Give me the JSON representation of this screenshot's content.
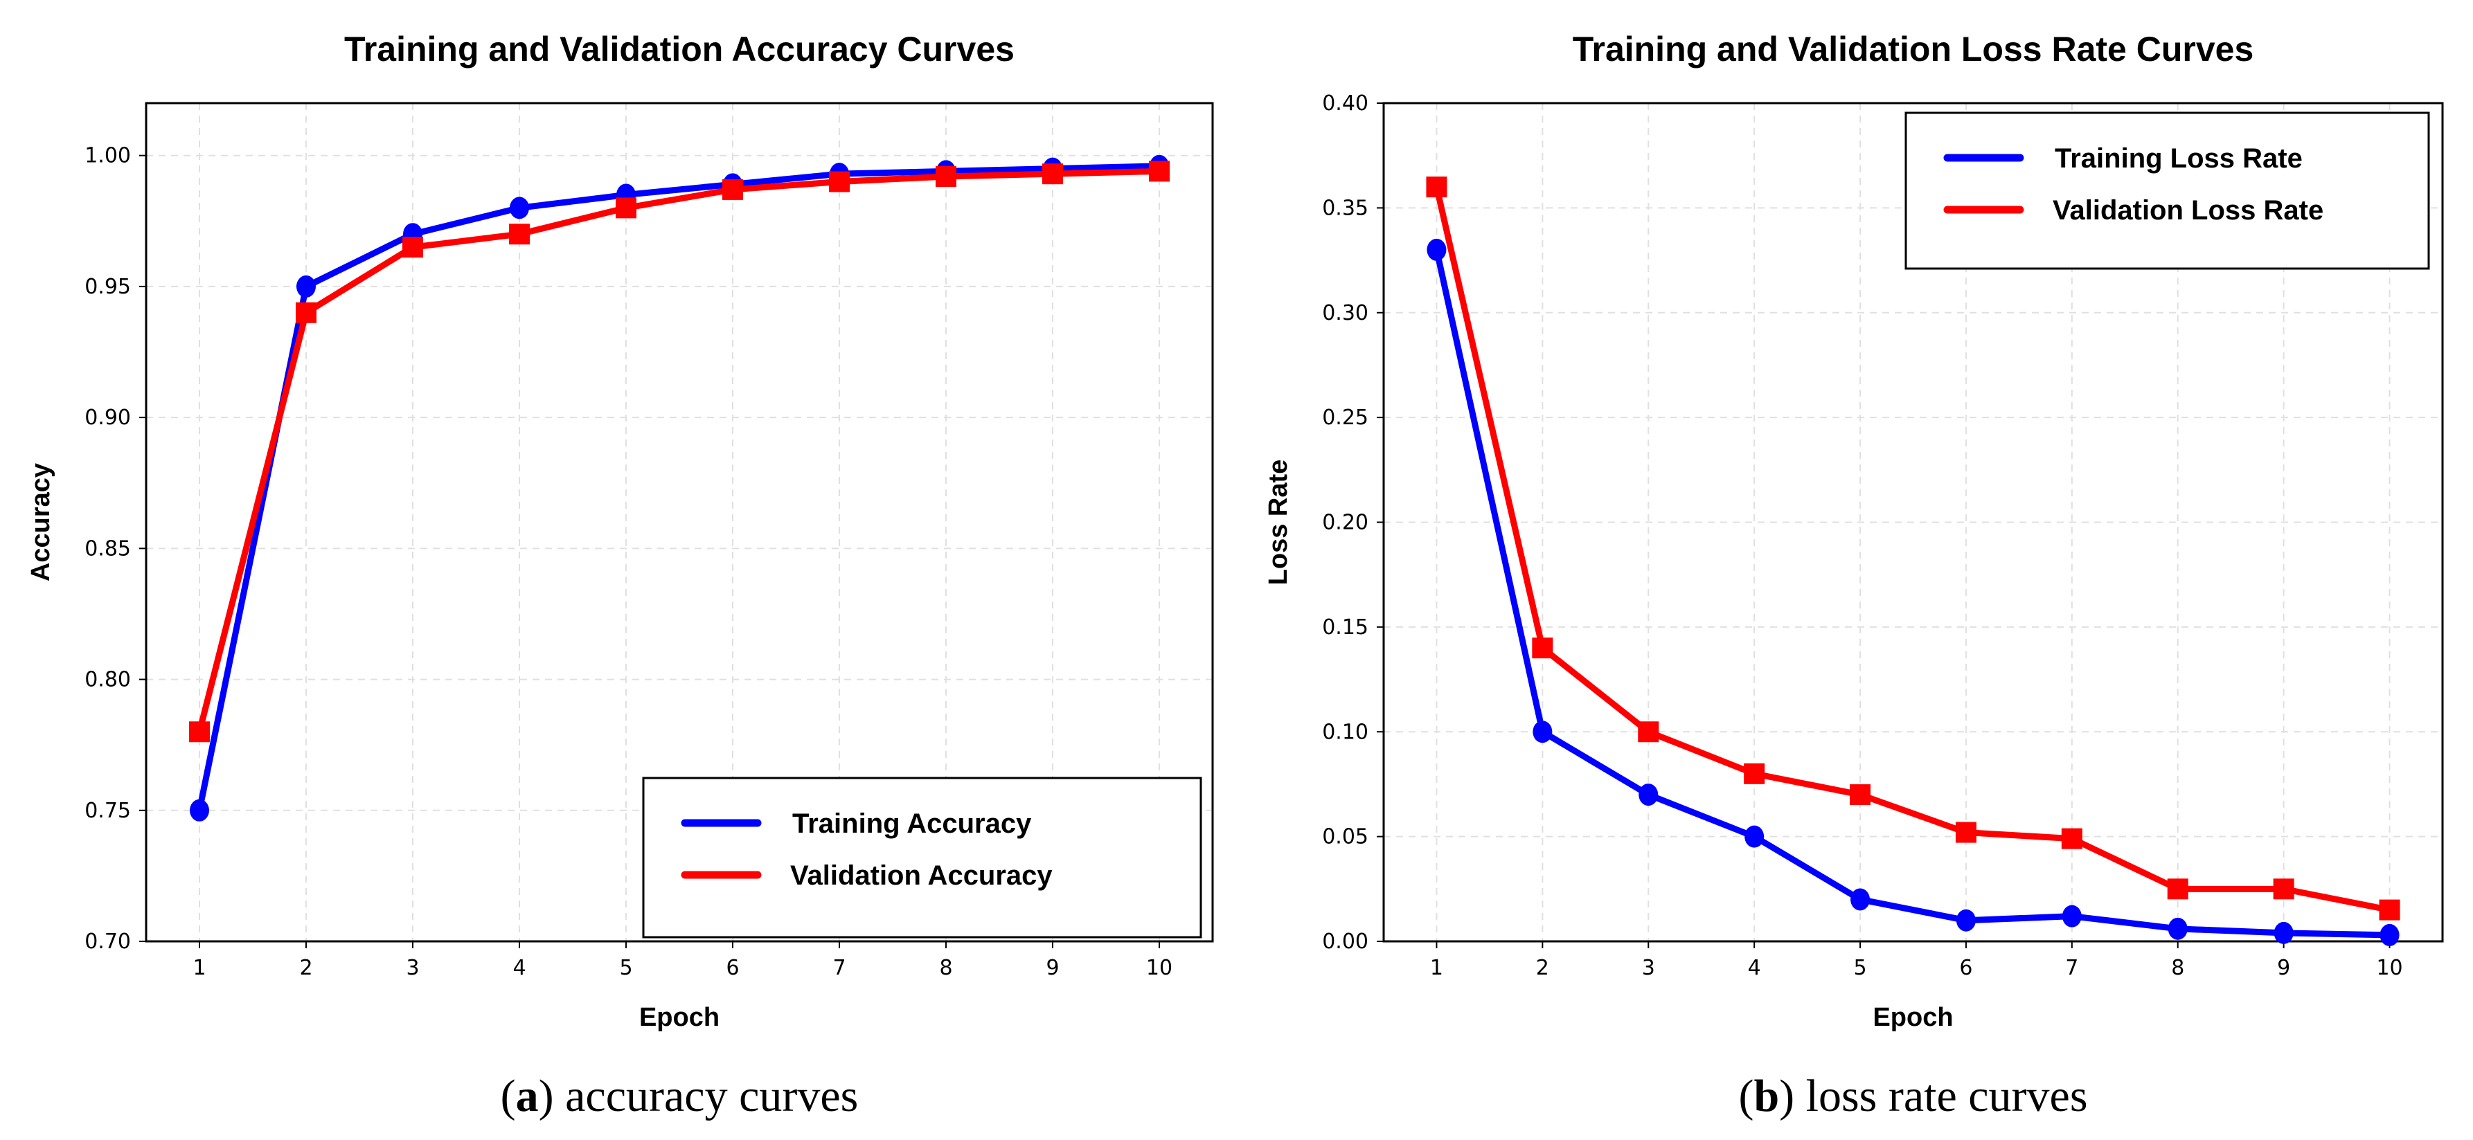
{
  "colors": {
    "training": "#0000ff",
    "validation": "#ff0000",
    "grid": "#e0e0e0"
  },
  "chart_data": [
    {
      "type": "line",
      "title": "Training and Validation Accuracy Curves",
      "xlabel": "Epoch",
      "ylabel": "Accuracy",
      "x": [
        1,
        2,
        3,
        4,
        5,
        6,
        7,
        8,
        9,
        10
      ],
      "xlim": [
        0.5,
        10.5
      ],
      "ylim": [
        0.7,
        1.02
      ],
      "yticks": [
        "0.70",
        "0.75",
        "0.80",
        "0.85",
        "0.90",
        "0.95",
        "1.00"
      ],
      "grid": true,
      "legend_position": "bottom-right",
      "series": [
        {
          "name": "Training Accuracy",
          "color": "#0000ff",
          "marker": "circle",
          "values": [
            0.75,
            0.95,
            0.97,
            0.98,
            0.985,
            0.989,
            0.993,
            0.994,
            0.995,
            0.996
          ]
        },
        {
          "name": "Validation Accuracy",
          "color": "#ff0000",
          "marker": "square",
          "values": [
            0.78,
            0.94,
            0.965,
            0.97,
            0.98,
            0.987,
            0.99,
            0.992,
            0.993,
            0.994
          ]
        }
      ],
      "caption_label": "a",
      "caption_text": " accuracy curves"
    },
    {
      "type": "line",
      "title": "Training and Validation Loss Rate Curves",
      "xlabel": "Epoch",
      "ylabel": "Loss Rate",
      "x": [
        1,
        2,
        3,
        4,
        5,
        6,
        7,
        8,
        9,
        10
      ],
      "xlim": [
        0.5,
        10.5
      ],
      "ylim": [
        0,
        0.4
      ],
      "yticks": [
        "0.00",
        "0.05",
        "0.10",
        "0.15",
        "0.20",
        "0.25",
        "0.30",
        "0.35",
        "0.40"
      ],
      "grid": true,
      "legend_position": "top-right",
      "series": [
        {
          "name": "Training Loss Rate",
          "color": "#0000ff",
          "marker": "circle",
          "values": [
            0.33,
            0.1,
            0.07,
            0.05,
            0.02,
            0.01,
            0.012,
            0.006,
            0.004,
            0.003
          ]
        },
        {
          "name": "Validation Loss Rate",
          "color": "#ff0000",
          "marker": "square",
          "values": [
            0.36,
            0.14,
            0.1,
            0.08,
            0.07,
            0.052,
            0.049,
            0.025,
            0.025,
            0.015
          ]
        }
      ],
      "caption_label": "b",
      "caption_text": " loss rate curves"
    }
  ]
}
